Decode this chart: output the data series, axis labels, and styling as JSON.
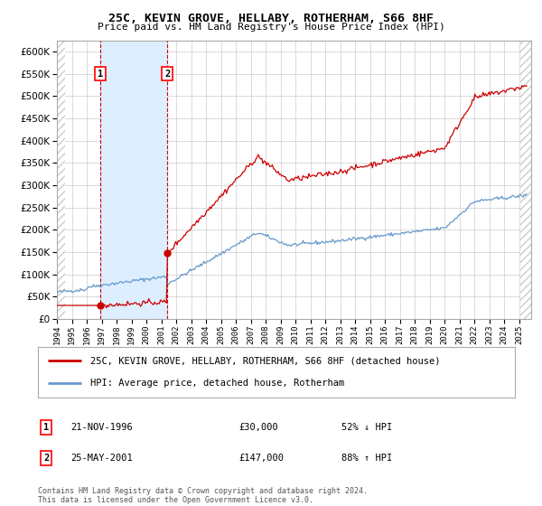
{
  "title": "25C, KEVIN GROVE, HELLABY, ROTHERHAM, S66 8HF",
  "subtitle": "Price paid vs. HM Land Registry's House Price Index (HPI)",
  "property_label": "25C, KEVIN GROVE, HELLABY, ROTHERHAM, S66 8HF (detached house)",
  "hpi_label": "HPI: Average price, detached house, Rotherham",
  "purchase1_date": 1996.9,
  "purchase1_price": 30000,
  "purchase1_label": "1",
  "purchase1_info": "21-NOV-1996",
  "purchase1_amount": "£30,000",
  "purchase1_hpi": "52% ↓ HPI",
  "purchase2_date": 2001.4,
  "purchase2_price": 147000,
  "purchase2_label": "2",
  "purchase2_info": "25-MAY-2001",
  "purchase2_amount": "£147,000",
  "purchase2_hpi": "88% ↑ HPI",
  "ylim": [
    0,
    625000
  ],
  "xmin": 1994.0,
  "xmax": 2025.8,
  "shaded_region_color": "#ddeeff",
  "red_line_color": "#cc0000",
  "blue_line_color": "#6699cc",
  "marker_color": "#cc0000",
  "dashed_line_color": "#cc0000",
  "grid_color": "#cccccc",
  "background_color": "#ffffff",
  "footer": "Contains HM Land Registry data © Crown copyright and database right 2024.\nThis data is licensed under the Open Government Licence v3.0."
}
